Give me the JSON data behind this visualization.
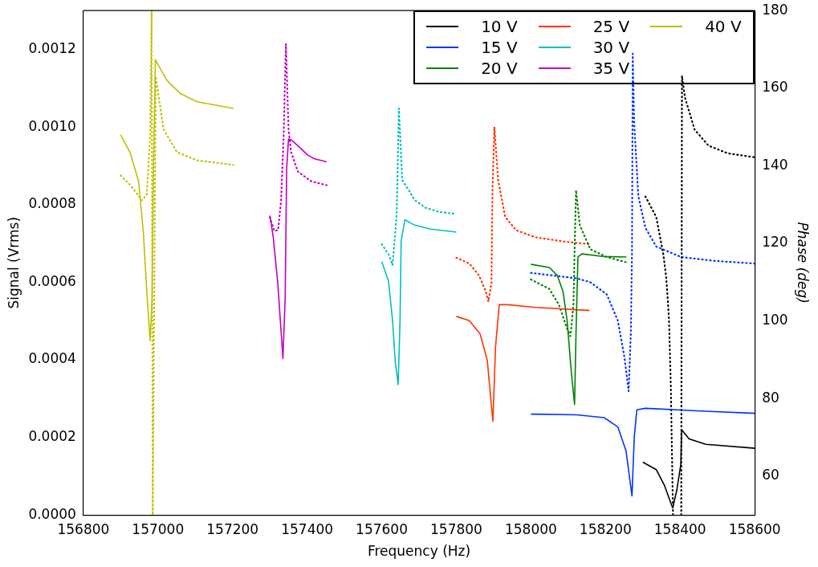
{
  "chart_data": {
    "type": "line",
    "xlabel": "Frequency (Hz)",
    "ylabel": "Signal (Vrms)",
    "y2label": "Phase (deg)",
    "xlim": [
      156800,
      158600
    ],
    "xticks": [
      156800,
      157000,
      157200,
      157400,
      157600,
      157800,
      158000,
      158200,
      158400,
      158600
    ],
    "ylim": [
      0,
      0.0013
    ],
    "yticks": [
      {
        "value": 0,
        "label": "0.0000"
      },
      {
        "value": 0.0002,
        "label": "0.0002"
      },
      {
        "value": 0.0004,
        "label": "0.0004"
      },
      {
        "value": 0.0006,
        "label": "0.0006"
      },
      {
        "value": 0.0008,
        "label": "0.0008"
      },
      {
        "value": 0.001,
        "label": "0.0010"
      },
      {
        "value": 0.0012,
        "label": "0.0012"
      }
    ],
    "y2lim": [
      50,
      180
    ],
    "y2ticks": [
      60,
      80,
      100,
      120,
      140,
      160,
      180
    ],
    "grid": false,
    "legend": "top right",
    "marker": "none",
    "series": [
      {
        "name": "10 V",
        "color": "#000000",
        "line_style": "solid",
        "x": [
          158300,
          158336,
          158358,
          158380,
          158391,
          158402,
          158404,
          158424,
          158469,
          158600
        ],
        "values": [
          0.000136,
          0.000117,
          7.6e-05,
          1.8e-05,
          6.3e-05,
          0.000131,
          0.00022,
          0.000196,
          0.000182,
          0.000172
        ]
      },
      {
        "name": "15 V",
        "color": "#0033ff",
        "line_style": "solid",
        "x": [
          158000,
          158122,
          158196,
          158233,
          158255,
          158271,
          158277,
          158284,
          158307,
          158454,
          158600
        ],
        "values": [
          0.00026,
          0.000258,
          0.000251,
          0.000227,
          0.000165,
          4.9e-05,
          0.0002,
          0.000271,
          0.000275,
          0.000268,
          0.000262
        ]
      },
      {
        "name": "20 V",
        "color": "#008000",
        "line_style": "solid",
        "x": [
          158000,
          158049,
          158071,
          158086,
          158097,
          158108,
          158117,
          158121,
          158126,
          158137,
          158196,
          158256
        ],
        "values": [
          0.000646,
          0.000638,
          0.000617,
          0.000576,
          0.000501,
          0.000371,
          0.000285,
          0.000473,
          0.000665,
          0.000673,
          0.000666,
          0.000665
        ]
      },
      {
        "name": "25 V",
        "color": "#ff3300",
        "line_style": "solid",
        "x": [
          157800,
          157835,
          157864,
          157883,
          157898,
          157905,
          157915,
          157938,
          158012,
          158157
        ],
        "values": [
          0.000512,
          0.000501,
          0.000466,
          0.000398,
          0.000241,
          0.000432,
          0.000542,
          0.000542,
          0.000535,
          0.000527
        ]
      },
      {
        "name": "30 V",
        "color": "#00bfbf",
        "line_style": "solid",
        "x": [
          157600,
          157618,
          157629,
          157636,
          157644,
          157649,
          157652,
          157662,
          157688,
          157732,
          157800
        ],
        "values": [
          0.000653,
          0.000603,
          0.0005,
          0.000398,
          0.000336,
          0.0005,
          0.000706,
          0.000761,
          0.000747,
          0.000737,
          0.000729
        ]
      },
      {
        "name": "35 V",
        "color": "#bf00bf",
        "line_style": "solid",
        "x": [
          157300,
          157309,
          157321,
          157330,
          157335,
          157341,
          157345,
          157350,
          157357,
          157375,
          157402,
          157420,
          157452
        ],
        "values": [
          0.000772,
          0.000717,
          0.0006,
          0.000474,
          0.000403,
          0.000558,
          0.000893,
          0.000969,
          0.000967,
          0.000952,
          0.000927,
          0.000918,
          0.00091
        ]
      },
      {
        "name": "40 V",
        "color": "#bfbf00",
        "line_style": "solid",
        "x": [
          156900,
          156925,
          156948,
          156961,
          156970,
          156979,
          156984,
          156988,
          156993,
          156997,
          157024,
          157060,
          157105,
          157150,
          157202
        ],
        "values": [
          0.00098,
          0.000935,
          0.00086,
          0.000725,
          0.000575,
          0.000449,
          0.000558,
          0.000893,
          0.001174,
          0.001166,
          0.00112,
          0.001086,
          0.001065,
          0.001057,
          0.001048
        ]
      },
      {
        "color": "#000000",
        "line_style": "dotted",
        "axis": "y2",
        "x": [
          158307,
          158336,
          158355,
          158363,
          158370,
          158375,
          158381,
          158392,
          158403,
          158405,
          158413,
          158439,
          158476,
          158528,
          158600
        ],
        "values": [
          132.1,
          126.8,
          117.2,
          111,
          100.8,
          83.6,
          50,
          null,
          50,
          163.2,
          157.6,
          149.3,
          145.2,
          143.2,
          142.2
        ]
      },
      {
        "color": "#0033ff",
        "line_style": "dotted",
        "axis": "y2",
        "x": [
          158000,
          158122,
          158159,
          158203,
          158233,
          158251,
          158262,
          158268,
          158271,
          158273,
          158277,
          158288,
          158307,
          158336,
          158402,
          158491,
          158600
        ],
        "values": [
          112.4,
          111,
          110,
          106.9,
          100.1,
          90.5,
          81.9,
          97.3,
          117.9,
          168.9,
          150.7,
          132.2,
          124,
          119.2,
          116.5,
          115.5,
          114.8
        ]
      },
      {
        "color": "#008000",
        "line_style": "dotted",
        "axis": "y2",
        "x": [
          158000,
          158049,
          158075,
          158097,
          158106,
          158114,
          158117,
          158121,
          158131,
          158159,
          158203,
          158256
        ],
        "values": [
          110.7,
          108.3,
          104.2,
          98,
          96.1,
          104.2,
          117.9,
          133.7,
          124.7,
          118.5,
          116.5,
          115.1
        ]
      },
      {
        "color": "#ff3300",
        "line_style": "dotted",
        "axis": "y2",
        "x": [
          157800,
          157835,
          157861,
          157879,
          157886,
          157894,
          157897,
          157902,
          157912,
          157931,
          157960,
          158011,
          158086,
          158157
        ],
        "values": [
          116.3,
          114.8,
          111.7,
          107.6,
          105,
          109.7,
          134.3,
          150,
          136.4,
          126.8,
          123.4,
          121.6,
          120.5,
          119.8
        ]
      },
      {
        "color": "#00bfbf",
        "line_style": "dotted",
        "axis": "y2",
        "x": [
          157600,
          157618,
          157629,
          157640,
          157646,
          157655,
          157673,
          157688,
          157717,
          157754,
          157800
        ],
        "values": [
          119.8,
          117.2,
          114.4,
          127.5,
          154.8,
          136.3,
          133.6,
          131.2,
          129.2,
          128.1,
          127.6
        ]
      },
      {
        "color": "#bf00bf",
        "line_style": "dotted",
        "axis": "y2",
        "x": [
          157300,
          157312,
          157322,
          157330,
          157337,
          157343,
          157350,
          157357,
          157375,
          157411,
          157452
        ],
        "values": [
          126.7,
          123.2,
          123.4,
          130.9,
          147.7,
          171.4,
          149.4,
          143.5,
          138.5,
          136,
          135
        ]
      },
      {
        "color": "#bfbf00",
        "line_style": "dotted",
        "axis": "y2",
        "x": [
          156900,
          156925,
          156957,
          156970,
          156979,
          156983,
          156986,
          156994,
          157015,
          157051,
          157105,
          157202
        ],
        "values": [
          137.5,
          135.1,
          131.1,
          132.6,
          147.7,
          180,
          50,
          163,
          149.4,
          143.5,
          141.4,
          140.2
        ]
      }
    ]
  }
}
